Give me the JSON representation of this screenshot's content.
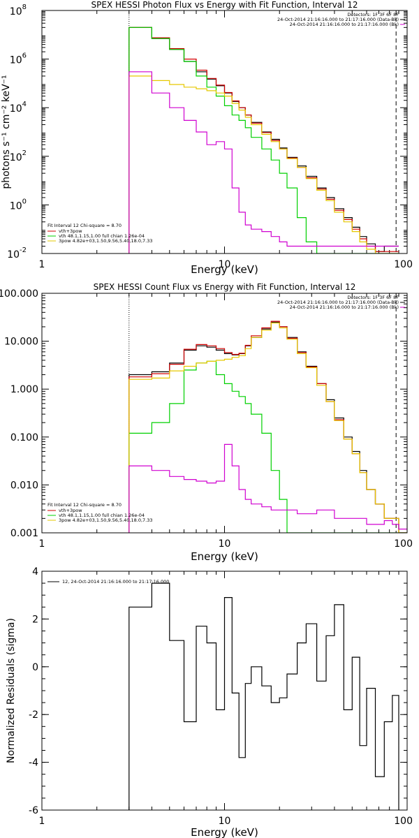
{
  "chart_data": [
    {
      "type": "line",
      "title": "SPEX HESSI Photon Flux vs Energy with Fit Function, Interval 12",
      "xlabel": "Energy (keV)",
      "ylabel": "photons s⁻¹ cm⁻² keV⁻¹",
      "xscale": "log",
      "yscale": "log",
      "xlim": [
        1,
        100
      ],
      "ylim": [
        0.01,
        100000000
      ],
      "x_ticks": [
        1,
        10,
        100
      ],
      "x_tick_labels": [
        "1",
        "10",
        "100"
      ],
      "y_ticks": [
        0.01,
        1,
        100,
        10000,
        1000000,
        100000000
      ],
      "y_tick_labels": [
        {
          "base": "10",
          "exp": "-2"
        },
        {
          "base": "10",
          "exp": "0"
        },
        {
          "base": "10",
          "exp": "2"
        },
        {
          "base": "10",
          "exp": "4"
        },
        {
          "base": "10",
          "exp": "6"
        },
        {
          "base": "10",
          "exp": "8"
        }
      ],
      "vlines": [
        {
          "x": 3,
          "style": "dotted"
        },
        {
          "x": 87,
          "style": "dashed"
        }
      ],
      "header_lines": [
        "Detectors: 1F 3F 6F 8F",
        "24-Oct-2014 21:16:16.000 to 21:17:16.000 (Data-Bk)",
        "24-Oct-2014 21:16:16.000 to 21:17:16.000 (Bk)"
      ],
      "fit_legend": {
        "title": "Fit Interval 12    Chi-square = 8.70",
        "entries": [
          {
            "label": "vth+3pow",
            "color": "#d00000"
          },
          {
            "label": "vth 48.1,1.15,1.00  full chian 1.26e-04",
            "color": "#00d000"
          },
          {
            "label": "3pow 4.82e+03,1.50,9.56,5.40,18.0,7.33",
            "color": "#e6c800"
          }
        ]
      },
      "bin_edges": [
        3.0,
        3.5,
        4.0,
        4.5,
        5.0,
        5.5,
        6.0,
        6.5,
        7.0,
        7.5,
        8.0,
        8.5,
        9.0,
        9.5,
        10.0,
        11.0,
        12.0,
        13.0,
        14.0,
        16.0,
        18.0,
        20.0,
        22.0,
        25.0,
        28.0,
        32.0,
        36.0,
        40.0,
        45.0,
        50.0,
        55.0,
        60.0,
        67.0,
        75.0,
        83.0,
        90.0
      ],
      "series": [
        {
          "color": "#000000",
          "values": [
            20000000,
            20000000,
            7000000,
            7000000,
            2500000,
            2500000,
            800000,
            800000,
            300000,
            300000,
            150000,
            150000,
            80000,
            80000,
            40000,
            18000,
            10000,
            5000,
            2500,
            1000,
            500,
            220,
            90,
            40,
            15,
            5,
            2,
            0.7,
            0.3,
            0.12,
            0.05,
            0.025,
            0.012,
            0.02,
            0.02
          ]
        },
        {
          "color": "#d00000",
          "values": [
            20000000,
            20000000,
            7500000,
            7500000,
            2700000,
            2700000,
            1000000,
            1000000,
            350000,
            350000,
            160000,
            160000,
            85000,
            85000,
            42000,
            19000,
            10000,
            5000,
            2300,
            950,
            450,
            200,
            85,
            35,
            13,
            4.5,
            1.7,
            0.6,
            0.25,
            0.1,
            0.04,
            0.02,
            0.012,
            0.012,
            0.012
          ]
        },
        {
          "color": "#00d000",
          "values": [
            20000000,
            20000000,
            7000000,
            7000000,
            2500000,
            2500000,
            800000,
            800000,
            200000,
            200000,
            70000,
            70000,
            30000,
            30000,
            12000,
            5000,
            3000,
            1500,
            600,
            200,
            70,
            20,
            5,
            0.3,
            0.03,
            0.01,
            0.01,
            0.01,
            0.01,
            0.01,
            0.01,
            0.01,
            0.01,
            0.01,
            0.01
          ]
        },
        {
          "color": "#e6c800",
          "values": [
            200000,
            200000,
            130000,
            130000,
            90000,
            90000,
            70000,
            70000,
            60000,
            60000,
            50000,
            50000,
            40000,
            40000,
            30000,
            15000,
            8000,
            4000,
            2000,
            800,
            400,
            200,
            80,
            35,
            12,
            4,
            1.5,
            0.5,
            0.2,
            0.08,
            0.03,
            0.015,
            0.01,
            0.01,
            0.01
          ]
        },
        {
          "color": "#d000d0",
          "values": [
            300000,
            300000,
            40000,
            40000,
            10000,
            10000,
            3000,
            3000,
            1000,
            1000,
            300,
            300,
            400,
            400,
            200,
            5,
            0.5,
            0.15,
            0.1,
            0.08,
            0.05,
            0.03,
            0.02,
            0.02,
            0.02,
            0.02,
            0.02,
            0.02,
            0.02,
            0.02,
            0.02,
            0.02,
            0.02,
            0.02,
            0.02
          ]
        }
      ]
    },
    {
      "type": "line",
      "title": "SPEX HESSI Count Flux vs Energy with Fit Function, Interval 12",
      "xlabel": "Energy (keV)",
      "ylabel": "",
      "xscale": "log",
      "yscale": "log",
      "xlim": [
        1,
        100
      ],
      "ylim": [
        0.001,
        100
      ],
      "x_ticks": [
        1,
        10,
        100
      ],
      "x_tick_labels": [
        "1",
        "10",
        "100"
      ],
      "y_ticks": [
        0.001,
        0.01,
        0.1,
        1,
        10,
        100
      ],
      "y_tick_labels": [
        "0.001",
        "0.010",
        "0.100",
        "1.000",
        "10.000",
        "100.000"
      ],
      "vlines": [
        {
          "x": 3,
          "style": "dotted"
        },
        {
          "x": 87,
          "style": "dashed"
        }
      ],
      "header_lines": [
        "Detectors: 1F 3F 6F 8F",
        "24-Oct-2014 21:16:16.000 to 21:17:16.000 (Data-Bk)",
        "24-Oct-2014 21:16:16.000 to 21:17:16.000 (Bk)"
      ],
      "fit_legend": {
        "title": "Fit Interval 12    Chi-square = 8.70",
        "entries": [
          {
            "label": "vth+3pow",
            "color": "#d00000"
          },
          {
            "label": "vth 48.1,1.15,1.00  full chian 1.26e-04",
            "color": "#00d000"
          },
          {
            "label": "3pow 4.82e+03,1.50,9.56,5.40,18.0,7.33",
            "color": "#e6c800"
          }
        ]
      },
      "bin_edges": [
        3.0,
        4.0,
        5.0,
        6.0,
        7.0,
        8.0,
        9.0,
        10.0,
        11.0,
        12.0,
        13.0,
        14.0,
        16.0,
        18.0,
        20.0,
        22.0,
        25.0,
        28.0,
        32.0,
        36.0,
        40.0,
        45.0,
        50.0,
        55.0,
        60.0,
        67.0,
        75.0,
        83.0,
        90.0,
        100.0
      ],
      "series": [
        {
          "color": "#000000",
          "values": [
            2.0,
            2.3,
            3.5,
            6.5,
            8.0,
            7.5,
            6.5,
            5.5,
            5.2,
            5.5,
            8.0,
            12.0,
            18.0,
            25.0,
            20.0,
            12.0,
            6.0,
            3.0,
            1.3,
            0.6,
            0.25,
            0.1,
            0.05,
            0.02,
            0.008,
            0.004,
            0.002,
            0.002,
            0.001
          ]
        },
        {
          "color": "#d00000",
          "values": [
            1.8,
            2.1,
            3.3,
            6.8,
            8.5,
            8.0,
            7.0,
            5.8,
            5.3,
            5.6,
            8.2,
            13.0,
            19.0,
            26.0,
            20.0,
            11.5,
            5.8,
            2.9,
            1.3,
            0.55,
            0.23,
            0.09,
            0.045,
            0.018,
            0.008,
            0.004,
            0.002,
            0.002,
            0.001
          ]
        },
        {
          "color": "#00d000",
          "values": [
            0.12,
            0.2,
            0.5,
            2.5,
            3.5,
            3.8,
            2.0,
            1.3,
            0.9,
            0.7,
            0.5,
            0.3,
            0.12,
            0.02,
            0.005,
            0.001,
            0.001,
            0.001,
            0.001,
            0.001,
            0.001,
            0.001,
            0.001,
            0.001,
            0.001,
            0.001,
            0.001,
            0.001,
            0.001
          ]
        },
        {
          "color": "#e6c800",
          "values": [
            1.6,
            1.7,
            2.4,
            3.0,
            3.5,
            3.8,
            4.0,
            4.2,
            4.6,
            5.0,
            7.0,
            12.0,
            17.0,
            24.0,
            19.0,
            11.0,
            5.5,
            2.8,
            1.2,
            0.55,
            0.22,
            0.09,
            0.045,
            0.018,
            0.008,
            0.004,
            0.002,
            0.002,
            0.001
          ]
        },
        {
          "color": "#d000d0",
          "values": [
            0.025,
            0.02,
            0.015,
            0.013,
            0.012,
            0.011,
            0.012,
            0.07,
            0.025,
            0.008,
            0.005,
            0.004,
            0.0035,
            0.003,
            0.003,
            0.003,
            0.0025,
            0.0025,
            0.003,
            0.003,
            0.002,
            0.002,
            0.002,
            0.002,
            0.0015,
            0.0015,
            0.0018,
            0.0015,
            0.0012
          ]
        }
      ]
    },
    {
      "type": "line",
      "title": "",
      "xlabel": "Energy (keV)",
      "ylabel": "Normalized Residuals (sigma)",
      "xscale": "log",
      "yscale": "linear",
      "xlim": [
        1,
        100
      ],
      "ylim": [
        -6,
        4
      ],
      "x_ticks": [
        1,
        10,
        100
      ],
      "x_tick_labels": [
        "1",
        "10",
        "100"
      ],
      "y_ticks": [
        -6,
        -4,
        -2,
        0,
        2,
        4
      ],
      "y_tick_labels": [
        "-6",
        "-4",
        "-2",
        "0",
        "2",
        "4"
      ],
      "legend_text": "12, 24-Oct-2014 21:16:16.000 to 21:17:16.000",
      "bin_edges": [
        3.0,
        4.0,
        5.0,
        6.0,
        7.0,
        8.0,
        9.0,
        10.0,
        11.0,
        12.0,
        13.0,
        14.0,
        16.0,
        18.0,
        20.0,
        22.0,
        25.0,
        28.0,
        32.0,
        36.0,
        40.0,
        45.0,
        50.0,
        55.0,
        60.0,
        67.0,
        75.0,
        83.0,
        90.0
      ],
      "series": [
        {
          "color": "#000000",
          "values": [
            2.5,
            3.5,
            1.1,
            -2.3,
            1.7,
            1.0,
            -1.8,
            2.9,
            -1.1,
            -3.8,
            -0.7,
            0.0,
            -0.8,
            -1.5,
            -1.3,
            -0.3,
            1.0,
            1.8,
            -0.6,
            1.3,
            2.6,
            -1.8,
            0.4,
            -3.3,
            -0.9,
            -4.6,
            -2.3,
            -1.2
          ]
        }
      ]
    }
  ]
}
